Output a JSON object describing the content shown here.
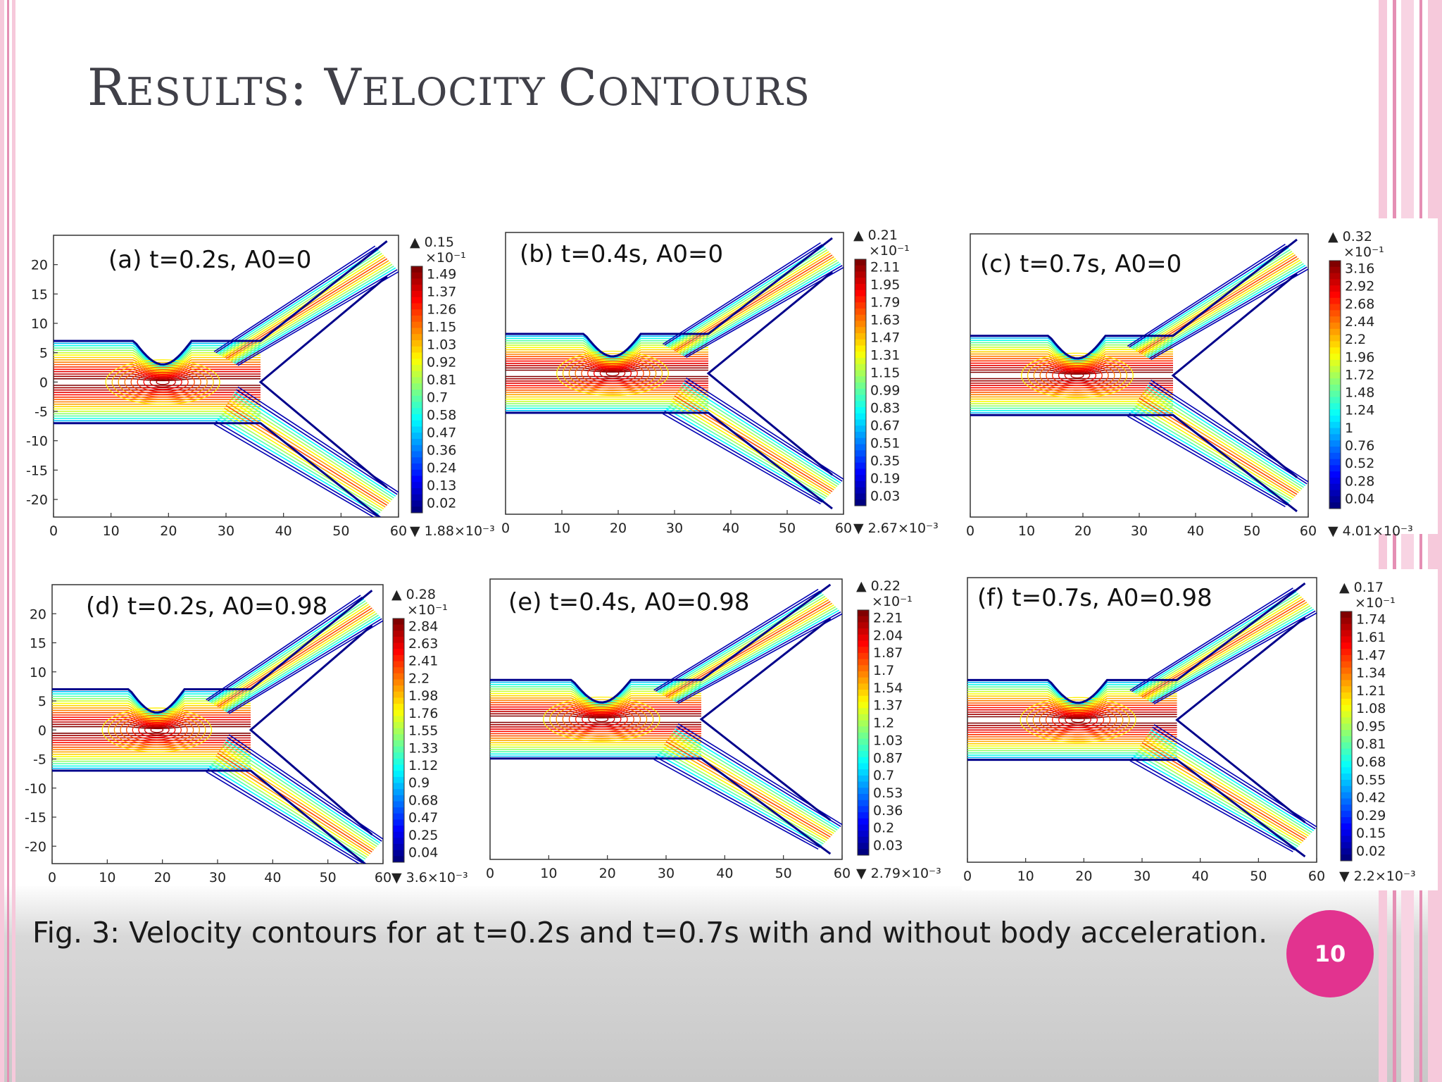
{
  "slide": {
    "title_initial_1": "R",
    "title_rest_1": "ESULTS",
    "title_sep": ": ",
    "title_initial_2": "V",
    "title_rest_2": "ELOCITY ",
    "title_initial_3": "C",
    "title_rest_3": "ONTOURS",
    "caption": "Fig. 3: Velocity contours for at t=0.2s and t=0.7s with and without body acceleration.",
    "page_number": "10",
    "colors": {
      "accent_pink": "#e2338f",
      "title": "#404048",
      "border_pink": "#f2b6cf"
    }
  },
  "chart_data": [
    {
      "type": "contour",
      "label": "(a) t=0.2s, A0=0",
      "x_ticks": [
        "0",
        "10",
        "20",
        "30",
        "40",
        "50",
        "60"
      ],
      "y_ticks": [
        "20",
        "15",
        "10",
        "5",
        "0",
        "-5",
        "-10",
        "-15",
        "-20"
      ],
      "xlim": [
        0,
        60
      ],
      "ylim": [
        -23,
        25
      ],
      "colorbar": {
        "max": "▲ 0.15",
        "scale": "×10⁻¹",
        "levels": [
          "1.49",
          "1.37",
          "1.26",
          "1.15",
          "1.03",
          "0.92",
          "0.81",
          "0.7",
          "0.58",
          "0.47",
          "0.36",
          "0.24",
          "0.13",
          "0.02"
        ],
        "min": "▼ 1.88×10⁻³"
      }
    },
    {
      "type": "contour",
      "label": "(b) t=0.4s, A0=0",
      "x_ticks": [
        "0",
        "10",
        "20",
        "30",
        "40",
        "50",
        "60"
      ],
      "y_ticks": [],
      "xlim": [
        0,
        60
      ],
      "ylim": [
        -25,
        25
      ],
      "colorbar": {
        "max": "▲ 0.21",
        "scale": "×10⁻¹",
        "levels": [
          "2.11",
          "1.95",
          "1.79",
          "1.63",
          "1.47",
          "1.31",
          "1.15",
          "0.99",
          "0.83",
          "0.67",
          "0.51",
          "0.35",
          "0.19",
          "0.03"
        ],
        "min": "▼ 2.67×10⁻³"
      }
    },
    {
      "type": "contour",
      "label": "(c) t=0.7s, A0=0",
      "x_ticks": [
        "0",
        "10",
        "20",
        "30",
        "40",
        "50",
        "60"
      ],
      "y_ticks": [],
      "xlim": [
        0,
        60
      ],
      "ylim": [
        -25,
        25
      ],
      "colorbar": {
        "max": "▲ 0.32",
        "scale": "×10⁻¹",
        "levels": [
          "3.16",
          "2.92",
          "2.68",
          "2.44",
          "2.2",
          "1.96",
          "1.72",
          "1.48",
          "1.24",
          "1",
          "0.76",
          "0.52",
          "0.28",
          "0.04"
        ],
        "min": "▼ 4.01×10⁻³"
      }
    },
    {
      "type": "contour",
      "label": "(d) t=0.2s, A0=0.98",
      "x_ticks": [
        "0",
        "10",
        "20",
        "30",
        "40",
        "50",
        "60"
      ],
      "y_ticks": [
        "20",
        "15",
        "10",
        "5",
        "0",
        "-5",
        "-10",
        "-15",
        "-20"
      ],
      "xlim": [
        0,
        60
      ],
      "ylim": [
        -23,
        25
      ],
      "colorbar": {
        "max": "▲ 0.28",
        "scale": "×10⁻¹",
        "levels": [
          "2.84",
          "2.63",
          "2.41",
          "2.2",
          "1.98",
          "1.76",
          "1.55",
          "1.33",
          "1.12",
          "0.9",
          "0.68",
          "0.47",
          "0.25",
          "0.04"
        ],
        "min": "▼ 3.6×10⁻³"
      }
    },
    {
      "type": "contour",
      "label": "(e) t=0.4s, A0=0.98",
      "x_ticks": [
        "0",
        "10",
        "20",
        "30",
        "40",
        "50",
        "60"
      ],
      "y_ticks": [],
      "xlim": [
        0,
        60
      ],
      "ylim": [
        -25,
        25
      ],
      "colorbar": {
        "max": "▲ 0.22",
        "scale": "×10⁻¹",
        "levels": [
          "2.21",
          "2.04",
          "1.87",
          "1.7",
          "1.54",
          "1.37",
          "1.2",
          "1.03",
          "0.87",
          "0.7",
          "0.53",
          "0.36",
          "0.2",
          "0.03"
        ],
        "min": "▼ 2.79×10⁻³"
      }
    },
    {
      "type": "contour",
      "label": "(f) t=0.7s, A0=0.98",
      "x_ticks": [
        "0",
        "10",
        "20",
        "30",
        "40",
        "50",
        "60"
      ],
      "y_ticks": [],
      "xlim": [
        0,
        60
      ],
      "ylim": [
        -25,
        25
      ],
      "colorbar": {
        "max": "▲ 0.17",
        "scale": "×10⁻¹",
        "levels": [
          "1.74",
          "1.61",
          "1.47",
          "1.34",
          "1.21",
          "1.08",
          "0.95",
          "0.81",
          "0.68",
          "0.55",
          "0.42",
          "0.29",
          "0.15",
          "0.02"
        ],
        "min": "▼ 2.2×10⁻³"
      }
    }
  ]
}
